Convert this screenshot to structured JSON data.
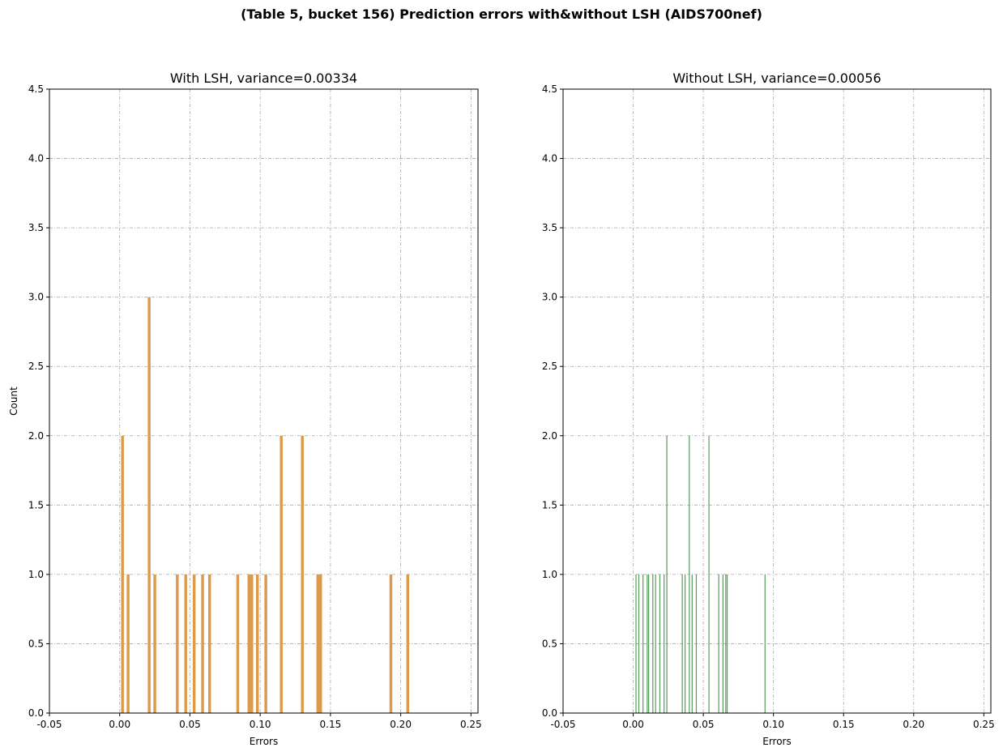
{
  "figure": {
    "suptitle": "(Table 5, bucket 156) Prediction errors with&without LSH (AIDS700nef)"
  },
  "chart_data": [
    {
      "type": "bar",
      "title": "With LSH, variance=0.00334",
      "xlabel": "Errors",
      "ylabel": "Count",
      "xlim": [
        -0.05,
        0.255
      ],
      "ylim": [
        0,
        4.5
      ],
      "xticks": [
        "-0.05",
        "0.00",
        "0.05",
        "0.10",
        "0.15",
        "0.20",
        "0.25"
      ],
      "yticks": [
        "0.0",
        "0.5",
        "1.0",
        "1.5",
        "2.0",
        "2.5",
        "3.0",
        "3.5",
        "4.0",
        "4.5"
      ],
      "grid": true,
      "color": "#dd9a4a",
      "bar_width": 0.002,
      "bars": [
        {
          "x": 0.002,
          "y": 2
        },
        {
          "x": 0.006,
          "y": 1
        },
        {
          "x": 0.021,
          "y": 3
        },
        {
          "x": 0.025,
          "y": 1
        },
        {
          "x": 0.041,
          "y": 1
        },
        {
          "x": 0.047,
          "y": 1
        },
        {
          "x": 0.053,
          "y": 1
        },
        {
          "x": 0.059,
          "y": 1
        },
        {
          "x": 0.064,
          "y": 1
        },
        {
          "x": 0.084,
          "y": 1
        },
        {
          "x": 0.092,
          "y": 1
        },
        {
          "x": 0.094,
          "y": 1
        },
        {
          "x": 0.098,
          "y": 1
        },
        {
          "x": 0.104,
          "y": 1
        },
        {
          "x": 0.115,
          "y": 2
        },
        {
          "x": 0.13,
          "y": 2
        },
        {
          "x": 0.141,
          "y": 1
        },
        {
          "x": 0.143,
          "y": 1
        },
        {
          "x": 0.193,
          "y": 1
        },
        {
          "x": 0.205,
          "y": 1
        }
      ]
    },
    {
      "type": "bar",
      "title": "Without LSH, variance=0.00056",
      "xlabel": "Errors",
      "ylabel": "",
      "xlim": [
        -0.05,
        0.255
      ],
      "ylim": [
        0,
        4.5
      ],
      "xticks": [
        "-0.05",
        "0.00",
        "0.05",
        "0.10",
        "0.15",
        "0.20",
        "0.25"
      ],
      "yticks": [
        "0.0",
        "0.5",
        "1.0",
        "1.5",
        "2.0",
        "2.5",
        "3.0",
        "3.5",
        "4.0",
        "4.5"
      ],
      "grid": true,
      "color": "#5a9e5e",
      "bar_width": 0.0007,
      "bars": [
        {
          "x": 0.002,
          "y": 1
        },
        {
          "x": 0.004,
          "y": 1
        },
        {
          "x": 0.007,
          "y": 1
        },
        {
          "x": 0.01,
          "y": 1
        },
        {
          "x": 0.011,
          "y": 1
        },
        {
          "x": 0.014,
          "y": 1
        },
        {
          "x": 0.016,
          "y": 1
        },
        {
          "x": 0.019,
          "y": 1
        },
        {
          "x": 0.022,
          "y": 1
        },
        {
          "x": 0.024,
          "y": 2
        },
        {
          "x": 0.035,
          "y": 1
        },
        {
          "x": 0.037,
          "y": 1
        },
        {
          "x": 0.04,
          "y": 2
        },
        {
          "x": 0.042,
          "y": 1
        },
        {
          "x": 0.045,
          "y": 1
        },
        {
          "x": 0.054,
          "y": 2
        },
        {
          "x": 0.061,
          "y": 1
        },
        {
          "x": 0.064,
          "y": 1
        },
        {
          "x": 0.066,
          "y": 1
        },
        {
          "x": 0.067,
          "y": 1
        },
        {
          "x": 0.094,
          "y": 1
        }
      ]
    }
  ]
}
